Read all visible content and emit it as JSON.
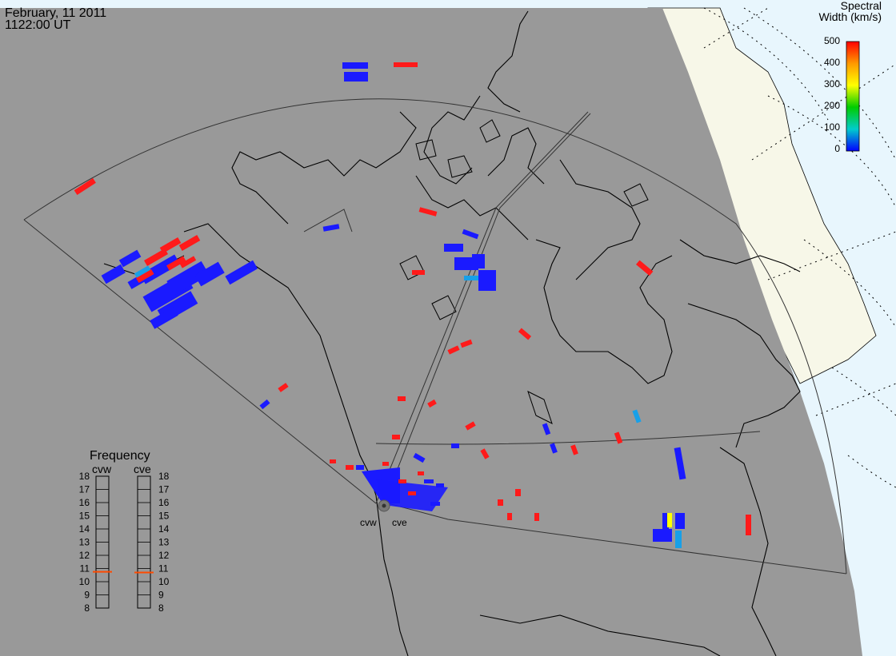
{
  "header": {
    "date": "February, 11 2011",
    "time": "1122:00 UT"
  },
  "colorbar": {
    "title_line1": "Spectral",
    "title_line2": "Width (km/s)",
    "ticks": [
      "500",
      "400",
      "300",
      "200",
      "100",
      "0"
    ],
    "colors": [
      "#ff0000",
      "#ff9900",
      "#ffff00",
      "#00cc00",
      "#00cccc",
      "#0000ff"
    ]
  },
  "frequency_panel": {
    "title": "Frequency",
    "radars": [
      {
        "name": "cvw",
        "current_mhz": 10.75
      },
      {
        "name": "cve",
        "current_mhz": 10.7
      }
    ],
    "scale": [
      "18",
      "17",
      "16",
      "15",
      "14",
      "13",
      "12",
      "11",
      "10",
      "9",
      "8"
    ]
  },
  "radar_labels": [
    "cvw",
    "cve"
  ],
  "colors": {
    "field_of_view": "#999999",
    "ocean": "#e8f6fd",
    "ice": "#f7f7e8",
    "low_width": "#1a1aff",
    "high_width": "#ff1a1a",
    "mid_width": "#18a0e8"
  }
}
